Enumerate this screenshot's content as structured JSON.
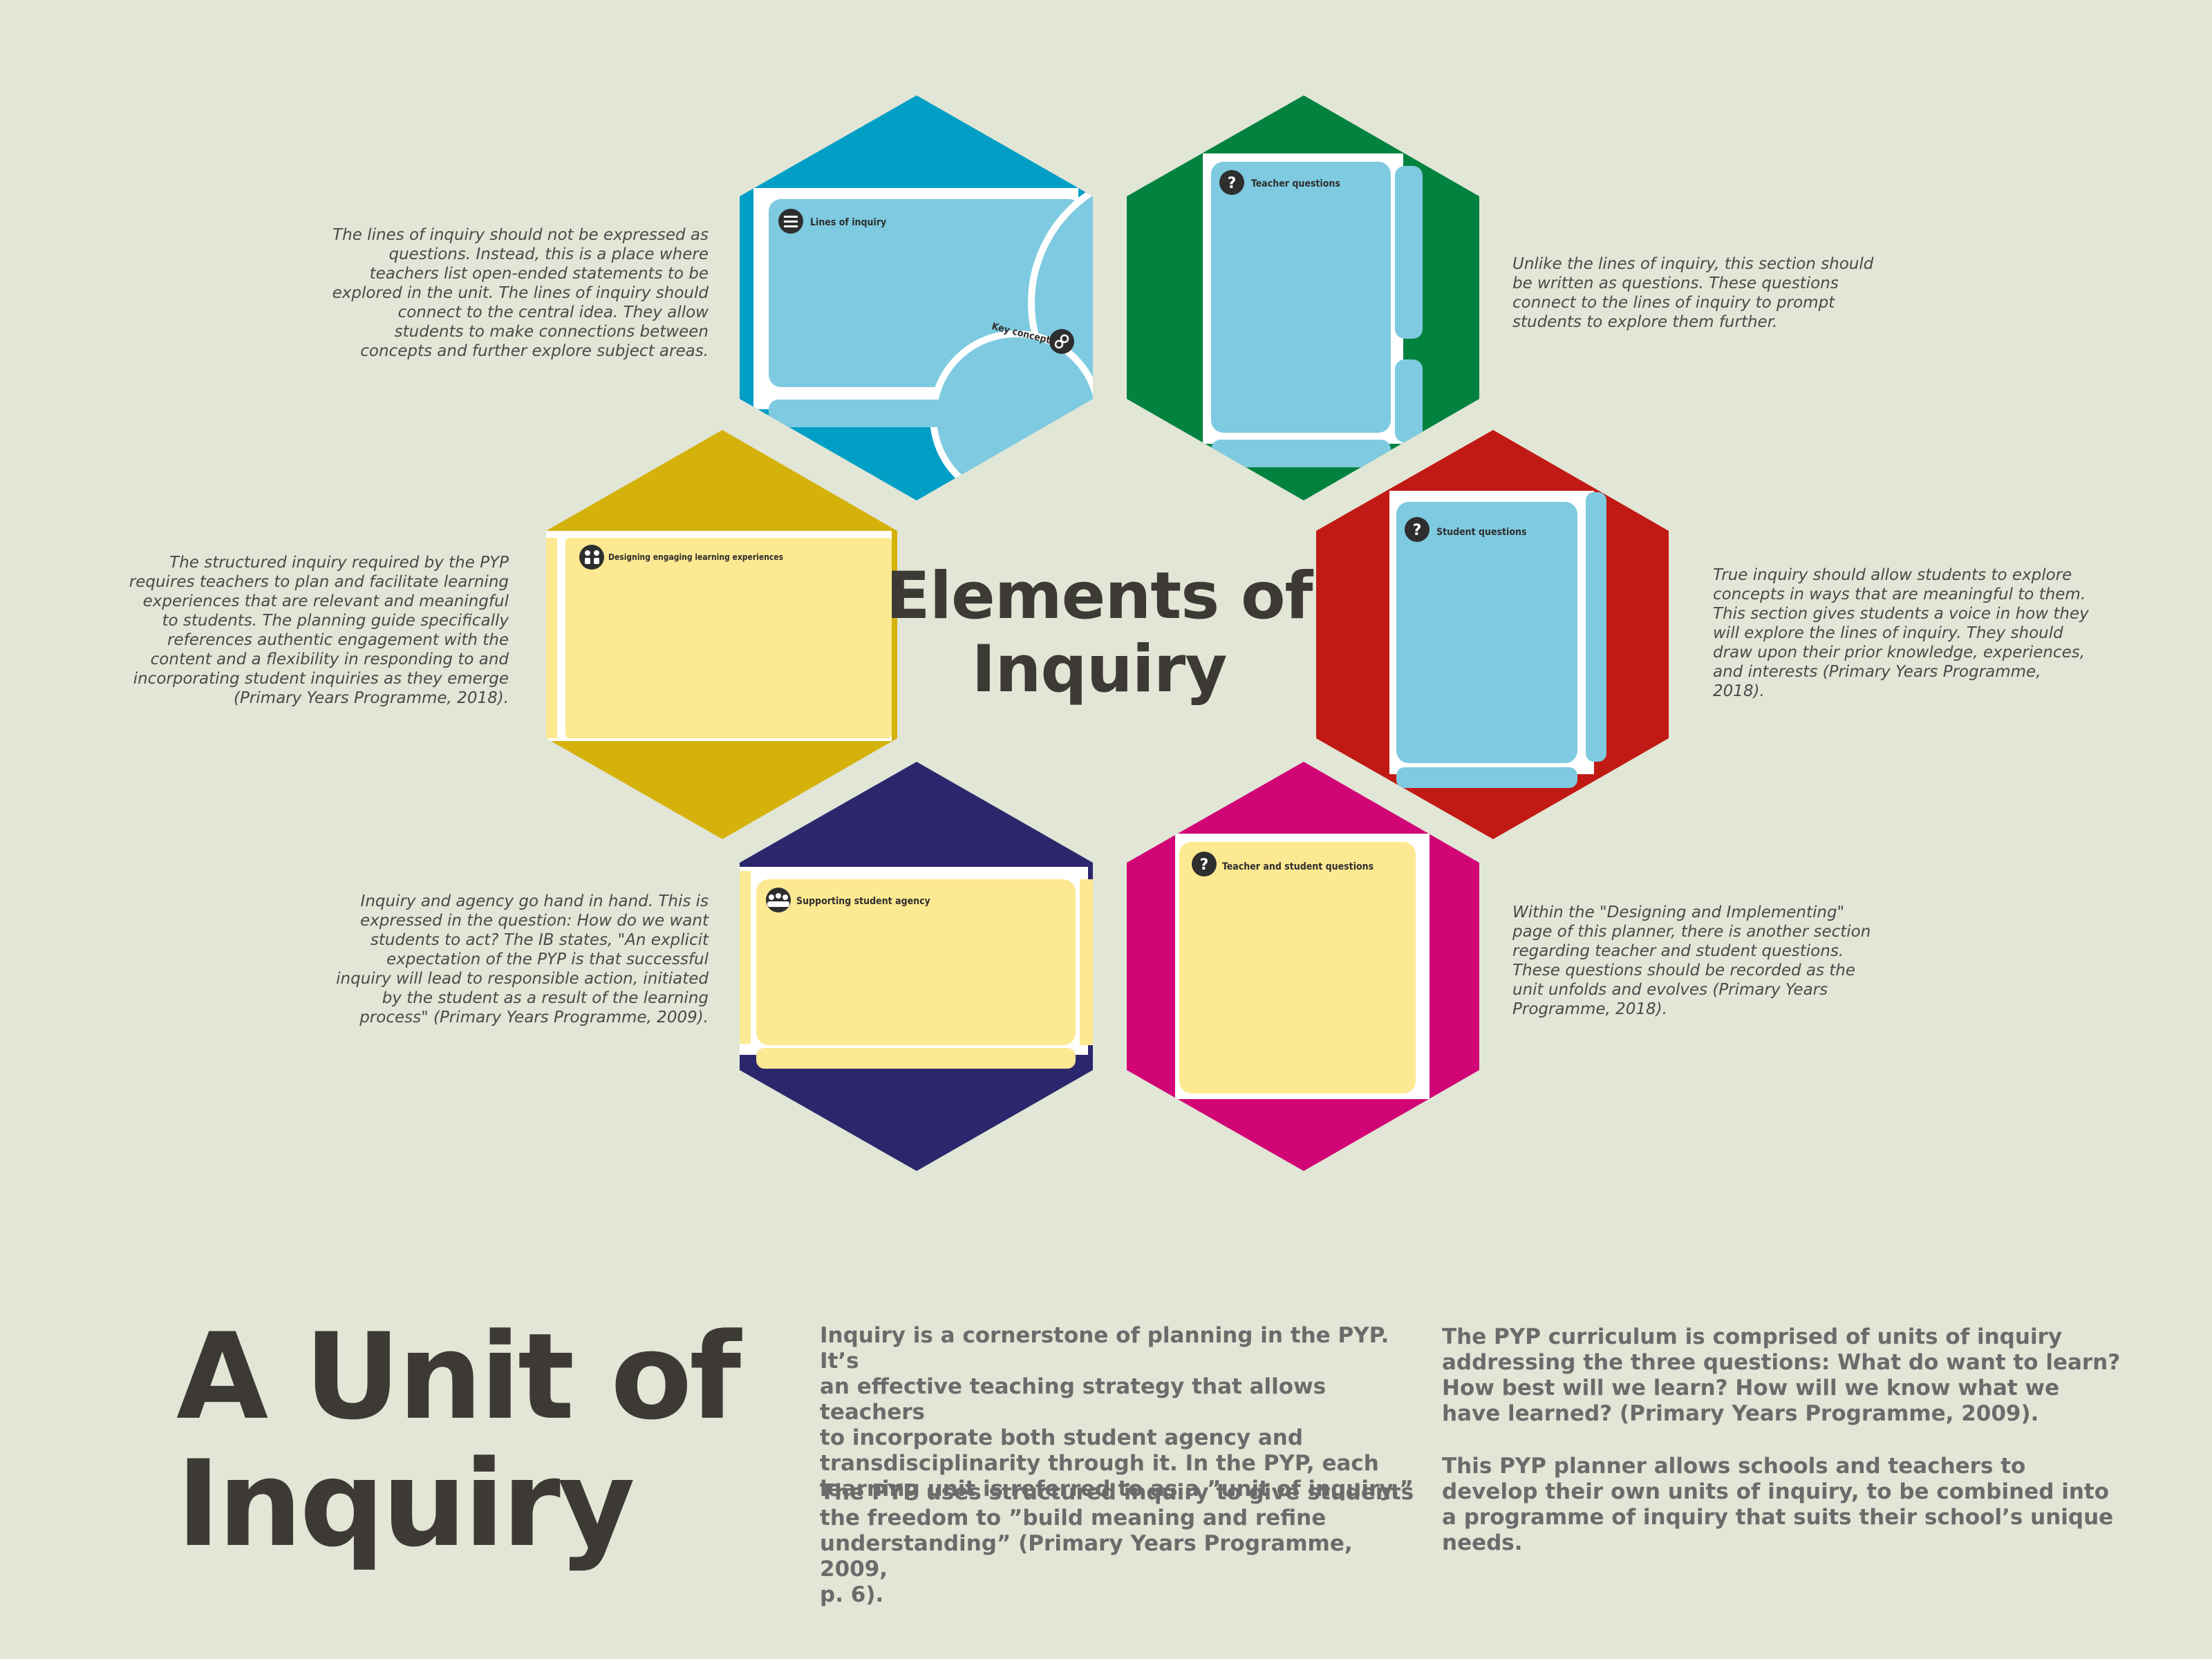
{
  "center_title": "Elements of\nInquiry",
  "hexagons": {
    "lines_of_inquiry": {
      "color": "#019ec6",
      "panel_label": "Lines of inquiry",
      "secondary_label": "Key concepts"
    },
    "teacher_questions": {
      "color": "#02823f",
      "panel_label": "Teacher questions"
    },
    "designing": {
      "color": "#d5b10c",
      "panel_label": "Designing engaging learning experiences"
    },
    "student_questions": {
      "color": "#c11a14",
      "panel_label": "Student questions"
    },
    "supporting_agency": {
      "color": "#2c276d",
      "panel_label": "Supporting student agency"
    },
    "teacher_student_questions": {
      "color": "#d10576",
      "panel_label": "Teacher and student questions"
    }
  },
  "notes": {
    "lines_of_inquiry": "The lines of inquiry should not be expressed as\nquestions. Instead, this is a place where\nteachers list open-ended statements to be\nexplored in the unit. The lines of inquiry should\nconnect to the central idea. They allow\nstudents to make connections between\nconcepts and further explore subject areas.",
    "teacher_questions": "Unlike the lines of inquiry, this section should\nbe written as questions. These questions\nconnect to the lines of inquiry to prompt\nstudents to explore them further.",
    "designing": "The structured inquiry required by the PYP\nrequires teachers to plan and facilitate learning\nexperiences that are relevant and meaningful\nto students. The planning guide specifically\nreferences authentic engagement with the\ncontent and a flexibility in responding to and\nincorporating student inquiries as they emerge\n(Primary Years Programme, 2018).",
    "student_questions": "True inquiry should allow students to explore\nconcepts in ways that are meaningful to them.\nThis section gives students a voice in how they\nwill explore the lines of inquiry. They should\ndraw upon their prior knowledge, experiences,\nand interests (Primary Years Programme,\n2018).",
    "supporting_agency": "Inquiry and agency go hand in hand. This is\nexpressed in the question: How do we want\nstudents to act? The IB states, \"An explicit\nexpectation of the PYP is that successful\ninquiry will lead to responsible action, initiated\nby the student as a result of the learning\nprocess\" (Primary Years Programme, 2009).",
    "teacher_student_questions": "Within the \"Designing and Implementing\"\npage of this planner, there is another section\nregarding teacher and student questions.\nThese questions should be recorded as the\nunit unfolds and evolves (Primary Years\nProgramme, 2018)."
  },
  "bottom": {
    "title": "A Unit of\nInquiry",
    "para_left_1": "Inquiry is a cornerstone of planning in the PYP. It’s\nan effective teaching strategy that allows teachers\nto incorporate both student agency and\ntransdisciplinarity through it. In the PYP, each\nlearning unit is referred to as a ”unit of inquiry.”",
    "para_left_2": "The PYP uses structured inquiry to give students\nthe freedom to ”build meaning and refine\nunderstanding” (Primary Years Programme, 2009,\np. 6).",
    "para_right_1": "The PYP curriculum is comprised of units of inquiry\naddressing the three questions: What do want to learn?\nHow best will we learn? How will we know what we\nhave learned? (Primary Years Programme, 2009).",
    "para_right_2": "This PYP planner allows schools and teachers to\ndevelop their own units of inquiry, to be combined into\na programme of inquiry that suits their school’s unique\nneeds."
  },
  "colors": {
    "background": "#e1e6d6",
    "panel_blue": "#7ecae0",
    "panel_yellow": "#fde991",
    "icon": "#2e2e2e"
  },
  "icons": [
    "menu-icon",
    "link-icon",
    "question-icon",
    "people-icon",
    "group-icon"
  ]
}
